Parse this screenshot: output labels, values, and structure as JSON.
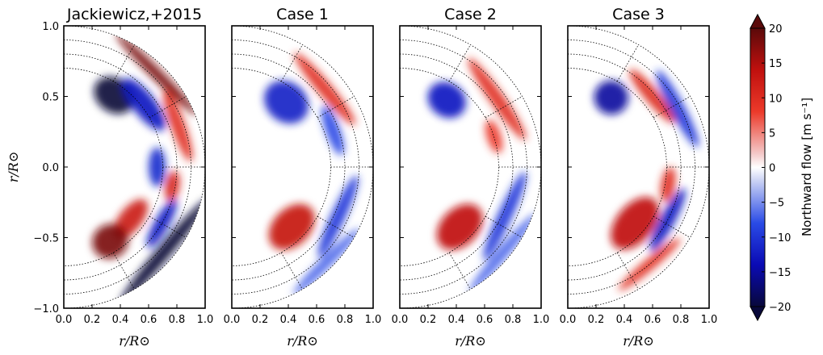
{
  "figure": {
    "panels": [
      {
        "title": "Jackiewicz,+2015"
      },
      {
        "title": "Case 1"
      },
      {
        "title": "Case 2"
      },
      {
        "title": "Case 3"
      }
    ],
    "y_axis_label": "r/R⊙",
    "x_axis_label": "r/R⊙",
    "colorbar_label": "Northward flow [m s⁻¹]"
  },
  "colors": {
    "negative_extreme": "#08083a",
    "negative": "#1a2bd6",
    "neutral": "#ffffff",
    "positive": "#e0191e",
    "positive_extreme": "#5a0a0a"
  },
  "chart_data": {
    "type": "heatmap",
    "description_geometry": "meridional half-disk",
    "x_ticks": [
      "0.0",
      "0.2",
      "0.4",
      "0.6",
      "0.8",
      "1.0"
    ],
    "y_ticks": [
      "1.0",
      "0.5",
      "0.0",
      "−0.5",
      "−1.0"
    ],
    "xlim": [
      0.0,
      1.0
    ],
    "ylim": [
      -1.0,
      1.0
    ],
    "colorbar": {
      "ticks": [
        "20",
        "15",
        "10",
        "5",
        "0",
        "−5",
        "−10",
        "−15",
        "−20"
      ],
      "range": [
        -20,
        20
      ],
      "colormap": "seismic"
    },
    "panels": [
      {
        "name": "Jackiewicz,+2015",
        "blobs": [
          {
            "r": 0.62,
            "theta_deg": 55,
            "dr": 0.12,
            "dtheta": 14,
            "value": -20
          },
          {
            "r": 0.72,
            "theta_deg": 38,
            "dr": 0.08,
            "dtheta": 18,
            "value": -12
          },
          {
            "r": 0.93,
            "theta_deg": 45,
            "dr": 0.04,
            "dtheta": 25,
            "value": 18
          },
          {
            "r": 0.86,
            "theta_deg": 20,
            "dr": 0.05,
            "dtheta": 18,
            "value": 8
          },
          {
            "r": 0.66,
            "theta_deg": 0,
            "dr": 0.06,
            "dtheta": 12,
            "value": -10
          },
          {
            "r": 0.78,
            "theta_deg": -10,
            "dr": 0.05,
            "dtheta": 8,
            "value": 10
          },
          {
            "r": 0.6,
            "theta_deg": -38,
            "dr": 0.08,
            "dtheta": 16,
            "value": 12
          },
          {
            "r": 0.62,
            "theta_deg": -58,
            "dr": 0.12,
            "dtheta": 12,
            "value": 18
          },
          {
            "r": 0.93,
            "theta_deg": -40,
            "dr": 0.05,
            "dtheta": 30,
            "value": -20
          },
          {
            "r": 0.8,
            "theta_deg": -30,
            "dr": 0.05,
            "dtheta": 14,
            "value": -12
          }
        ]
      },
      {
        "name": "Case 1",
        "blobs": [
          {
            "r": 0.6,
            "theta_deg": 50,
            "dr": 0.14,
            "dtheta": 16,
            "value": -11
          },
          {
            "r": 0.86,
            "theta_deg": 40,
            "dr": 0.05,
            "dtheta": 22,
            "value": 8
          },
          {
            "r": 0.76,
            "theta_deg": 20,
            "dr": 0.05,
            "dtheta": 14,
            "value": -6
          },
          {
            "r": 0.6,
            "theta_deg": -45,
            "dr": 0.13,
            "dtheta": 18,
            "value": 13
          },
          {
            "r": 0.83,
            "theta_deg": -25,
            "dr": 0.05,
            "dtheta": 22,
            "value": -8
          },
          {
            "r": 0.95,
            "theta_deg": -45,
            "dr": 0.04,
            "dtheta": 20,
            "value": -5
          }
        ]
      },
      {
        "name": "Case 2",
        "blobs": [
          {
            "r": 0.58,
            "theta_deg": 55,
            "dr": 0.12,
            "dtheta": 14,
            "value": -12
          },
          {
            "r": 0.84,
            "theta_deg": 35,
            "dr": 0.05,
            "dtheta": 24,
            "value": 8
          },
          {
            "r": 0.7,
            "theta_deg": 18,
            "dr": 0.05,
            "dtheta": 10,
            "value": 6
          },
          {
            "r": 0.6,
            "theta_deg": -45,
            "dr": 0.13,
            "dtheta": 18,
            "value": 14
          },
          {
            "r": 0.82,
            "theta_deg": -25,
            "dr": 0.05,
            "dtheta": 24,
            "value": -8
          },
          {
            "r": 0.95,
            "theta_deg": -40,
            "dr": 0.04,
            "dtheta": 22,
            "value": -5
          }
        ]
      },
      {
        "name": "Case 3",
        "blobs": [
          {
            "r": 0.58,
            "theta_deg": 58,
            "dr": 0.12,
            "dtheta": 12,
            "value": -15
          },
          {
            "r": 0.78,
            "theta_deg": 40,
            "dr": 0.05,
            "dtheta": 18,
            "value": 9
          },
          {
            "r": 0.88,
            "theta_deg": 28,
            "dr": 0.05,
            "dtheta": 20,
            "value": -8
          },
          {
            "r": 0.62,
            "theta_deg": -40,
            "dr": 0.13,
            "dtheta": 20,
            "value": 14
          },
          {
            "r": 0.8,
            "theta_deg": -28,
            "dr": 0.05,
            "dtheta": 18,
            "value": -12
          },
          {
            "r": 0.72,
            "theta_deg": -10,
            "dr": 0.05,
            "dtheta": 10,
            "value": 8
          },
          {
            "r": 0.9,
            "theta_deg": -50,
            "dr": 0.04,
            "dtheta": 18,
            "value": 8
          }
        ]
      }
    ]
  }
}
